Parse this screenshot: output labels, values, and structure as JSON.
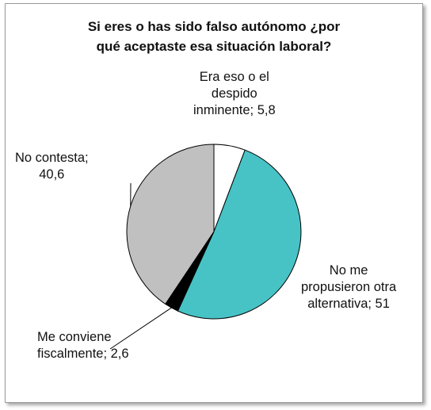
{
  "chart_data": {
    "type": "pie",
    "title_lines": [
      "Si eres o has sido falso autónomo ¿por",
      "qué aceptaste esa situación laboral?"
    ],
    "slices": [
      {
        "name": "Era eso o el despido inminente",
        "value": 5.8,
        "color": "#ffffff",
        "label_lines": [
          "Era eso o el",
          "despido",
          "inminente; 5,8"
        ]
      },
      {
        "name": "No me propusieron otra alternativa",
        "value": 51,
        "color": "#47c3c6",
        "label_lines": [
          "No me",
          "propusieron otra",
          "alternativa; 51"
        ]
      },
      {
        "name": "Me conviene fiscalmente",
        "value": 2.6,
        "color": "#000000",
        "label_lines": [
          "Me conviene",
          "fiscalmente; 2,6"
        ]
      },
      {
        "name": "No contesta",
        "value": 40.6,
        "color": "#c0c0c0",
        "label_lines": [
          "No contesta;",
          "40,6"
        ]
      }
    ],
    "legend": "none",
    "start_angle": "12 o'clock",
    "direction": "clockwise"
  }
}
